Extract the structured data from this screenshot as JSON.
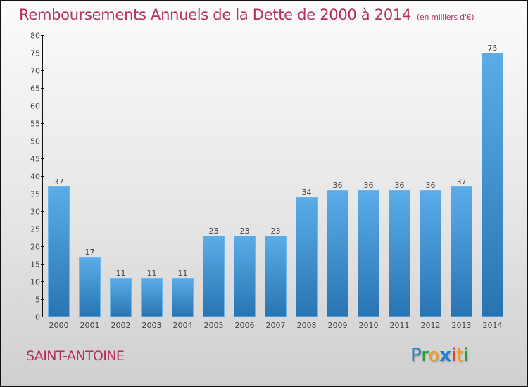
{
  "header": {
    "title": "Remboursements Annuels de la Dette de 2000 à 2014",
    "unit": "(en milliers d'€)"
  },
  "footer": {
    "commune": "SAINT-ANTOINE",
    "logo": [
      "P",
      "r",
      "o",
      "x",
      "i",
      "t",
      "i"
    ],
    "logo_colors": [
      "#1f7fd0",
      "#2a9a3a",
      "#f39a1e",
      "#1f7fd0",
      "#e0401e",
      "#f39a1e",
      "#2a9a3a"
    ]
  },
  "colors": {
    "title": "#b5305d",
    "bar_top": "#5aade8",
    "bar_bottom": "#2874b2",
    "bar_border": "#6cb8ee"
  },
  "chart_data": {
    "type": "bar",
    "title": "Remboursements Annuels de la Dette de 2000 à 2014",
    "subtitle": "(en milliers d'€)",
    "xlabel": "",
    "ylabel": "",
    "categories": [
      "2000",
      "2001",
      "2002",
      "2003",
      "2004",
      "2005",
      "2006",
      "2007",
      "2008",
      "2009",
      "2010",
      "2011",
      "2012",
      "2013",
      "2014"
    ],
    "values": [
      37,
      17,
      11,
      11,
      11,
      23,
      23,
      23,
      34,
      36,
      36,
      36,
      36,
      37,
      75
    ],
    "ylim": [
      0,
      80
    ],
    "yticks": [
      0,
      5,
      10,
      15,
      20,
      25,
      30,
      35,
      40,
      45,
      50,
      55,
      60,
      65,
      70,
      75,
      80
    ],
    "grid": false,
    "legend": "none",
    "data_labels": true
  }
}
